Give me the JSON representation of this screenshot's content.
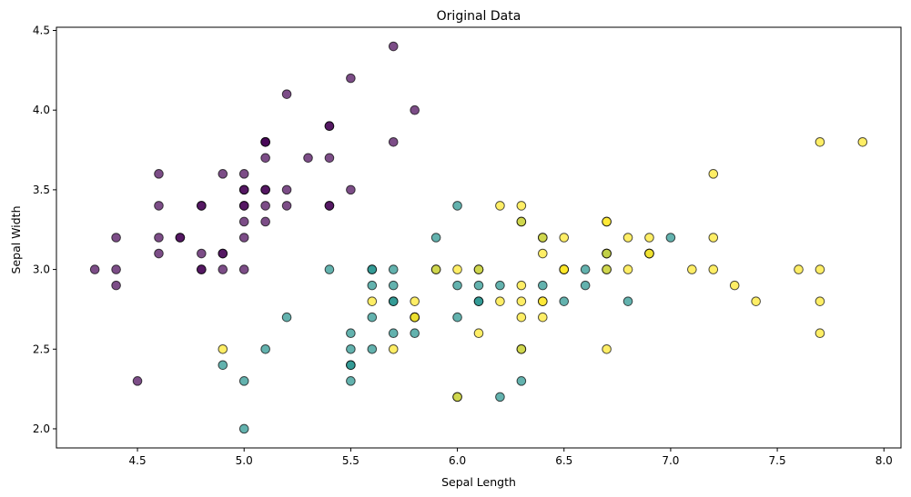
{
  "chart_data": {
    "type": "scatter",
    "title": "Original Data",
    "xlabel": "Sepal Length",
    "ylabel": "Sepal Width",
    "xlim": [
      4.12,
      8.08
    ],
    "ylim": [
      1.88,
      4.52
    ],
    "xticks": [
      4.5,
      5.0,
      5.5,
      6.0,
      6.5,
      7.0,
      7.5,
      8.0
    ],
    "xtick_labels": [
      "4.5",
      "5.0",
      "5.5",
      "6.0",
      "6.5",
      "7.0",
      "7.5",
      "8.0"
    ],
    "yticks": [
      2.0,
      2.5,
      3.0,
      3.5,
      4.0,
      4.5
    ],
    "ytick_labels": [
      "2.0",
      "2.5",
      "3.0",
      "3.5",
      "4.0",
      "4.5"
    ],
    "grid": false,
    "legend": "none",
    "marker_alpha": 0.7,
    "marker_edge_color": "#000000",
    "series": [
      {
        "color": "#440154",
        "points": [
          [
            5.1,
            3.5
          ],
          [
            4.9,
            3.0
          ],
          [
            4.7,
            3.2
          ],
          [
            4.6,
            3.1
          ],
          [
            5.0,
            3.6
          ],
          [
            5.4,
            3.9
          ],
          [
            4.6,
            3.4
          ],
          [
            5.0,
            3.4
          ],
          [
            4.4,
            2.9
          ],
          [
            4.9,
            3.1
          ],
          [
            5.4,
            3.7
          ],
          [
            4.8,
            3.4
          ],
          [
            4.8,
            3.0
          ],
          [
            4.3,
            3.0
          ],
          [
            5.8,
            4.0
          ],
          [
            5.7,
            4.4
          ],
          [
            5.4,
            3.9
          ],
          [
            5.1,
            3.5
          ],
          [
            5.7,
            3.8
          ],
          [
            5.1,
            3.8
          ],
          [
            5.4,
            3.4
          ],
          [
            5.1,
            3.7
          ],
          [
            4.6,
            3.6
          ],
          [
            5.1,
            3.3
          ],
          [
            4.8,
            3.4
          ],
          [
            5.0,
            3.0
          ],
          [
            5.0,
            3.4
          ],
          [
            5.2,
            3.5
          ],
          [
            5.2,
            3.4
          ],
          [
            4.7,
            3.2
          ],
          [
            4.8,
            3.1
          ],
          [
            5.4,
            3.4
          ],
          [
            5.2,
            4.1
          ],
          [
            5.5,
            4.2
          ],
          [
            4.9,
            3.1
          ],
          [
            5.0,
            3.2
          ],
          [
            5.5,
            3.5
          ],
          [
            4.9,
            3.6
          ],
          [
            4.4,
            3.0
          ],
          [
            5.1,
            3.4
          ],
          [
            5.0,
            3.5
          ],
          [
            4.5,
            2.3
          ],
          [
            4.4,
            3.2
          ],
          [
            5.0,
            3.5
          ],
          [
            5.1,
            3.8
          ],
          [
            4.8,
            3.0
          ],
          [
            5.1,
            3.8
          ],
          [
            4.6,
            3.2
          ],
          [
            5.3,
            3.7
          ],
          [
            5.0,
            3.3
          ]
        ]
      },
      {
        "color": "#21918c",
        "points": [
          [
            7.0,
            3.2
          ],
          [
            6.4,
            3.2
          ],
          [
            6.9,
            3.1
          ],
          [
            5.5,
            2.3
          ],
          [
            6.5,
            2.8
          ],
          [
            5.7,
            2.8
          ],
          [
            6.3,
            3.3
          ],
          [
            4.9,
            2.4
          ],
          [
            6.6,
            2.9
          ],
          [
            5.2,
            2.7
          ],
          [
            5.0,
            2.0
          ],
          [
            5.9,
            3.0
          ],
          [
            6.0,
            2.2
          ],
          [
            6.1,
            2.9
          ],
          [
            5.6,
            2.9
          ],
          [
            6.7,
            3.1
          ],
          [
            5.6,
            3.0
          ],
          [
            5.8,
            2.7
          ],
          [
            6.2,
            2.2
          ],
          [
            5.6,
            2.5
          ],
          [
            5.9,
            3.2
          ],
          [
            6.1,
            2.8
          ],
          [
            6.3,
            2.5
          ],
          [
            6.1,
            2.8
          ],
          [
            6.4,
            2.9
          ],
          [
            6.6,
            3.0
          ],
          [
            6.8,
            2.8
          ],
          [
            6.7,
            3.0
          ],
          [
            6.0,
            2.9
          ],
          [
            5.7,
            2.6
          ],
          [
            5.5,
            2.4
          ],
          [
            5.5,
            2.4
          ],
          [
            5.8,
            2.7
          ],
          [
            6.0,
            2.7
          ],
          [
            5.4,
            3.0
          ],
          [
            6.0,
            3.4
          ],
          [
            6.7,
            3.1
          ],
          [
            6.3,
            2.3
          ],
          [
            5.6,
            3.0
          ],
          [
            5.5,
            2.5
          ],
          [
            5.5,
            2.6
          ],
          [
            6.1,
            3.0
          ],
          [
            5.8,
            2.6
          ],
          [
            5.0,
            2.3
          ],
          [
            5.6,
            2.7
          ],
          [
            5.7,
            3.0
          ],
          [
            5.7,
            2.9
          ],
          [
            6.2,
            2.9
          ],
          [
            5.1,
            2.5
          ],
          [
            5.7,
            2.8
          ]
        ]
      },
      {
        "color": "#fde725",
        "points": [
          [
            6.3,
            3.3
          ],
          [
            5.8,
            2.7
          ],
          [
            7.1,
            3.0
          ],
          [
            6.3,
            2.9
          ],
          [
            6.5,
            3.0
          ],
          [
            7.6,
            3.0
          ],
          [
            4.9,
            2.5
          ],
          [
            7.3,
            2.9
          ],
          [
            6.7,
            2.5
          ],
          [
            7.2,
            3.6
          ],
          [
            6.5,
            3.2
          ],
          [
            6.4,
            2.7
          ],
          [
            6.8,
            3.0
          ],
          [
            5.7,
            2.5
          ],
          [
            5.8,
            2.8
          ],
          [
            6.4,
            3.2
          ],
          [
            6.5,
            3.0
          ],
          [
            7.7,
            3.8
          ],
          [
            7.7,
            2.6
          ],
          [
            6.0,
            2.2
          ],
          [
            6.9,
            3.2
          ],
          [
            5.6,
            2.8
          ],
          [
            7.7,
            2.8
          ],
          [
            6.3,
            2.7
          ],
          [
            6.7,
            3.3
          ],
          [
            7.2,
            3.2
          ],
          [
            6.2,
            2.8
          ],
          [
            6.1,
            3.0
          ],
          [
            6.4,
            2.8
          ],
          [
            7.2,
            3.0
          ],
          [
            7.4,
            2.8
          ],
          [
            7.9,
            3.8
          ],
          [
            6.4,
            2.8
          ],
          [
            6.3,
            2.8
          ],
          [
            6.1,
            2.6
          ],
          [
            7.7,
            3.0
          ],
          [
            6.3,
            3.4
          ],
          [
            6.4,
            3.1
          ],
          [
            6.0,
            3.0
          ],
          [
            6.9,
            3.1
          ],
          [
            6.7,
            3.1
          ],
          [
            6.9,
            3.1
          ],
          [
            5.8,
            2.7
          ],
          [
            6.8,
            3.2
          ],
          [
            6.7,
            3.3
          ],
          [
            6.7,
            3.0
          ],
          [
            6.3,
            2.5
          ],
          [
            6.5,
            3.0
          ],
          [
            6.2,
            3.4
          ],
          [
            5.9,
            3.0
          ]
        ]
      }
    ]
  }
}
